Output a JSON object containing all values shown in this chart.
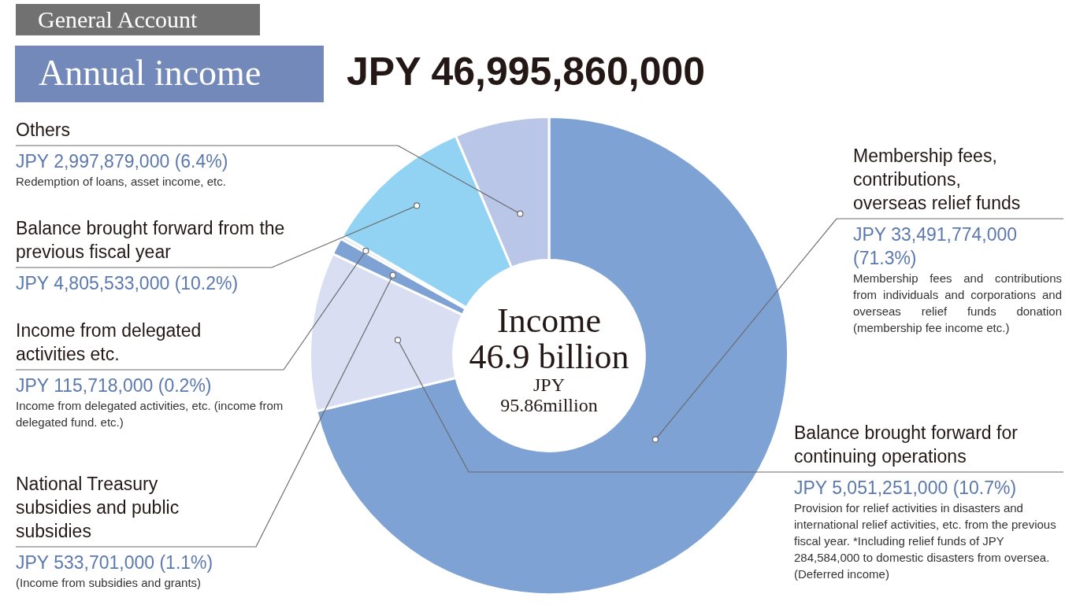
{
  "chart_data": {
    "type": "donut",
    "title": "Annual income",
    "subtitle": "General Account",
    "categories": [
      "Membership fees, contributions, overseas relief funds",
      "Balance brought forward for continuing operations",
      "National Treasury subsidies and public subsidies",
      "Income from delegated activities etc.",
      "Balance brought forward from the previous fiscal year",
      "Others"
    ],
    "values": [
      33491774000,
      5051251000,
      533701000,
      115718000,
      4805533000,
      2997879000
    ],
    "colors": [
      "#7fa2d5",
      "#d9def2",
      "#7fa2d5",
      "#dfe5f4",
      "#92d3f3",
      "#bac6e7"
    ],
    "value_labels": [
      "JPY 33,491,774,000 (71.3%)",
      "JPY 5,051,251,000 (10.7%)",
      "JPY 533,701,000 (1.1%)",
      "JPY 115,718,000 (0.2%)",
      "JPY 4,805,533,000 (10.2%)",
      "JPY 2,997,879,000 (6.4%)"
    ],
    "annotations": [
      "JPY 46,995,860,000",
      "Income\n46.9 billion\nJPY\n95.86million",
      "Membership fees and contributions from individuals and corporations and overseas relief funds donation (membership fee income etc.)",
      "Provision for relief activities in disasters and international relief activities, etc. from the previous fiscal year. *Including relief funds of JPY 284,584,000 to domestic disasters from oversea. (Deferred income)",
      "(Income from subsidies and grants)",
      "Income from delegated activities, etc. (income from delegated fund. etc.)",
      "Redemption of loans, asset income, etc."
    ],
    "legend": false
  }
}
